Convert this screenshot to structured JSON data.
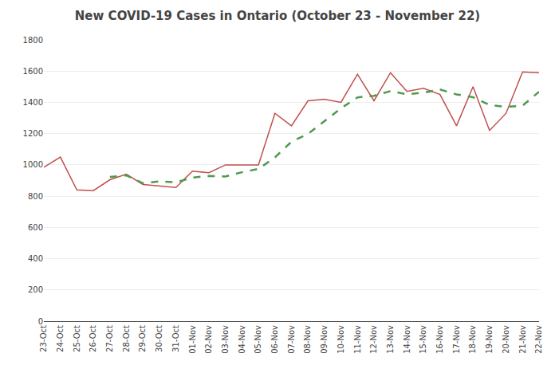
{
  "chart_data": {
    "type": "line",
    "title": "New COVID-19 Cases in Ontario (October 23 - November 22)",
    "categories": [
      "23-Oct",
      "24-Oct",
      "25-Oct",
      "26-Oct",
      "27-Oct",
      "28-Oct",
      "29-Oct",
      "30-Oct",
      "31-Oct",
      "01-Nov",
      "02-Nov",
      "03-Nov",
      "04-Nov",
      "05-Nov",
      "06-Nov",
      "07-Nov",
      "08-Nov",
      "09-Nov",
      "10-Nov",
      "11-Nov",
      "12-Nov",
      "13-Nov",
      "14-Nov",
      "15-Nov",
      "16-Nov",
      "17-Nov",
      "18-Nov",
      "19-Nov",
      "20-Nov",
      "21-Nov",
      "22-Nov"
    ],
    "series": [
      {
        "color": "#c0504d",
        "line_style": "solid",
        "values": [
          985,
          1050,
          840,
          835,
          905,
          940,
          875,
          865,
          855,
          960,
          950,
          1000,
          1000,
          1000,
          1330,
          1250,
          1410,
          1420,
          1400,
          1580,
          1410,
          1590,
          1470,
          1490,
          1450,
          1250,
          1500,
          1220,
          1330,
          1595,
          1590
        ]
      },
      {
        "color": "#4f9a4f",
        "line_style": "dashed",
        "values": [
          null,
          null,
          null,
          null,
          923,
          933,
          883,
          895,
          888,
          919,
          929,
          926,
          953,
          974,
          1048,
          1148,
          1198,
          1282,
          1362,
          1432,
          1442,
          1472,
          1452,
          1462,
          1482,
          1451,
          1433,
          1383,
          1371,
          1379,
          1468
        ]
      }
    ],
    "ylim": [
      0,
      1800
    ],
    "yticks": [
      0,
      200,
      400,
      600,
      800,
      1000,
      1200,
      1400,
      1600,
      1800
    ],
    "grid": true
  }
}
